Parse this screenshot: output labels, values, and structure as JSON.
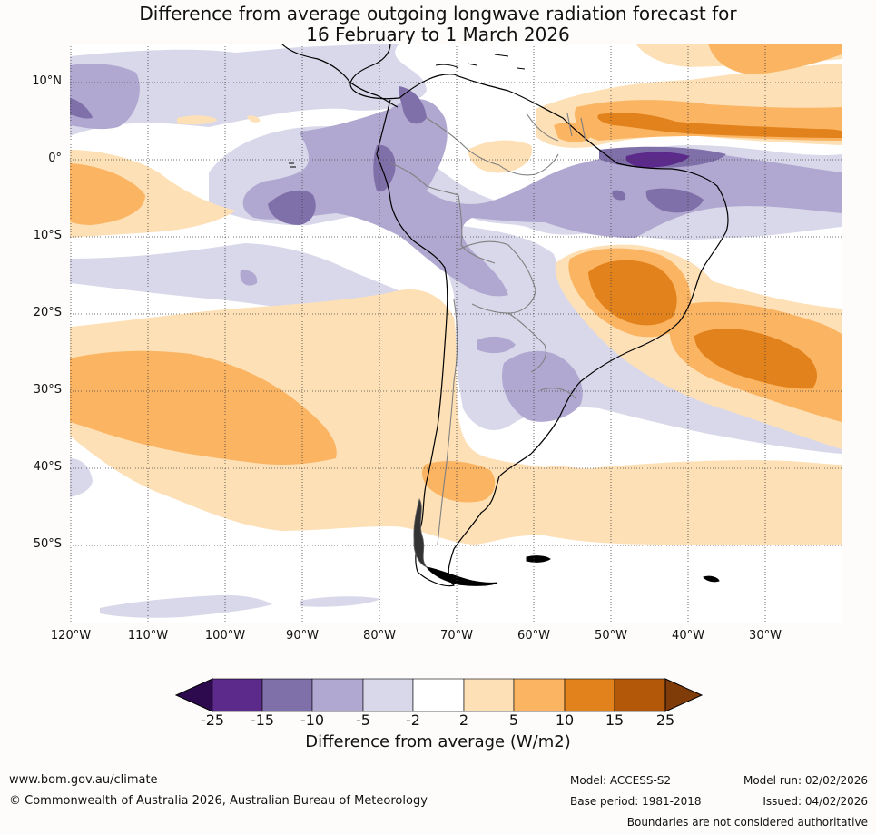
{
  "title": {
    "line1": "Difference from average outgoing longwave radiation forecast for",
    "line2": "16 February to 1 March 2026"
  },
  "map": {
    "lat_labels": [
      "10°N",
      "0°",
      "10°S",
      "20°S",
      "30°S",
      "40°S",
      "50°S"
    ],
    "lon_labels": [
      "120°W",
      "110°W",
      "100°W",
      "90°W",
      "80°W",
      "70°W",
      "60°W",
      "50°W",
      "40°W",
      "30°W"
    ],
    "lat_values": [
      10,
      0,
      -10,
      -20,
      -30,
      -40,
      -50
    ],
    "lon_values": [
      -120,
      -110,
      -100,
      -90,
      -80,
      -70,
      -60,
      -50,
      -40,
      -30
    ],
    "extent": {
      "lon_min": -120,
      "lon_max": -20,
      "lat_min": -60,
      "lat_max": 15
    }
  },
  "colorbar": {
    "title": "Difference from average (W/m2)",
    "ticks": [
      "-25",
      "-15",
      "-10",
      "-5",
      "-2",
      "2",
      "5",
      "10",
      "15",
      "25"
    ],
    "colors": [
      "#2d0a4e",
      "#5b2a8a",
      "#8070aa",
      "#b0a8d0",
      "#d8d8ea",
      "#ffffff",
      "#fde0b6",
      "#fab462",
      "#e2821c",
      "#b35808",
      "#7f3b08"
    ]
  },
  "footer": {
    "website": "www.bom.gov.au/climate",
    "copyright": "© Commonwealth of Australia 2026, Australian Bureau of Meteorology",
    "model": "Model: ACCESS-S2",
    "base_period": "Base period: 1981-2018",
    "model_run": "Model run: 02/02/2026",
    "issued": "Issued: 04/02/2026",
    "disclaimer": "Boundaries are not considered authoritative"
  },
  "colors": {
    "dark_purple": "#5b2a8a",
    "purple": "#8070aa",
    "light_purple": "#b0a8d0",
    "pale_purple": "#d8d8ea",
    "pale_orange": "#fde0b6",
    "light_orange": "#fab462",
    "orange": "#e2821c"
  }
}
